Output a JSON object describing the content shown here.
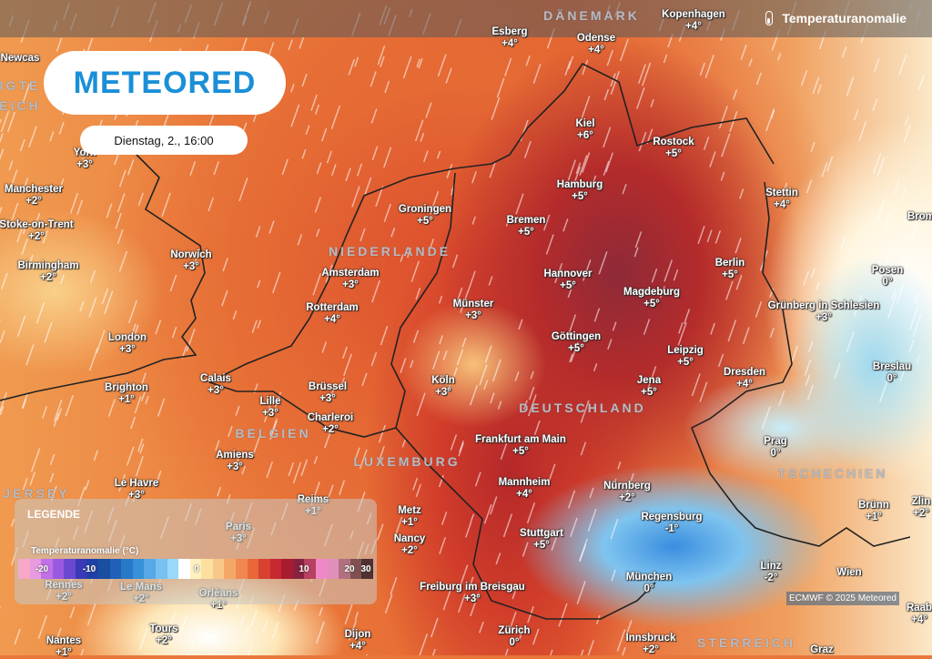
{
  "header": {
    "title": "Temperaturanomalie",
    "icon": "thermometer-icon"
  },
  "logo": {
    "text": "METEORED"
  },
  "timestamp": "Dienstag, 2., 16:00",
  "countries": [
    "DÄNEMARK",
    "NIEDERLANDE",
    "BELGIEN",
    "LUXEMBURG",
    "DEUTSCHLAND",
    "TSCHECHIEN",
    "STERREICH",
    "JERSEY",
    "IGTE",
    "EICH"
  ],
  "cities": [
    {
      "name": "Esberg",
      "value": "+4°"
    },
    {
      "name": "Odense",
      "value": "+4°"
    },
    {
      "name": "Kopenhagen",
      "value": "+4°"
    },
    {
      "name": "Newcas",
      "value": ""
    },
    {
      "name": "York",
      "value": "+3°"
    },
    {
      "name": "Manchester",
      "value": "+2°"
    },
    {
      "name": "Stoke-on-Trent",
      "value": "+2°"
    },
    {
      "name": "Birmingham",
      "value": "+2°"
    },
    {
      "name": "Norwich",
      "value": "+3°"
    },
    {
      "name": "London",
      "value": "+3°"
    },
    {
      "name": "Brighton",
      "value": "+1°"
    },
    {
      "name": "Calais",
      "value": "+3°"
    },
    {
      "name": "Lille",
      "value": "+3°"
    },
    {
      "name": "Brüssel",
      "value": "+3°"
    },
    {
      "name": "Charleroi",
      "value": "+2°"
    },
    {
      "name": "Amiens",
      "value": "+3°"
    },
    {
      "name": "Le Havre",
      "value": "+3°"
    },
    {
      "name": "Reims",
      "value": "+1°"
    },
    {
      "name": "Paris",
      "value": "+3°"
    },
    {
      "name": "Rennes",
      "value": "+2°"
    },
    {
      "name": "Le Mans",
      "value": "+2°"
    },
    {
      "name": "Orléans",
      "value": "+1°"
    },
    {
      "name": "Tours",
      "value": "+2°"
    },
    {
      "name": "Nantes",
      "value": "+1°"
    },
    {
      "name": "Dijon",
      "value": "+4°"
    },
    {
      "name": "Metz",
      "value": "+1°"
    },
    {
      "name": "Nancy",
      "value": "+2°"
    },
    {
      "name": "Kiel",
      "value": "+6°"
    },
    {
      "name": "Rostock",
      "value": "+5°"
    },
    {
      "name": "Hamburg",
      "value": "+5°"
    },
    {
      "name": "Bremen",
      "value": "+5°"
    },
    {
      "name": "Groningen",
      "value": "+5°"
    },
    {
      "name": "Amsterdam",
      "value": "+3°"
    },
    {
      "name": "Rotterdam",
      "value": "+4°"
    },
    {
      "name": "Münster",
      "value": "+3°"
    },
    {
      "name": "Hannover",
      "value": "+5°"
    },
    {
      "name": "Magdeburg",
      "value": "+5°"
    },
    {
      "name": "Berlin",
      "value": "+5°"
    },
    {
      "name": "Stettin",
      "value": "+4°"
    },
    {
      "name": "Posen",
      "value": "0°"
    },
    {
      "name": "Grünberg in Schlesien",
      "value": "+3°"
    },
    {
      "name": "Göttingen",
      "value": "+5°"
    },
    {
      "name": "Leipzig",
      "value": "+5°"
    },
    {
      "name": "Jena",
      "value": "+5°"
    },
    {
      "name": "Dresden",
      "value": "+4°"
    },
    {
      "name": "Breslau",
      "value": "0°"
    },
    {
      "name": "Köln",
      "value": "+3°"
    },
    {
      "name": "Frankfurt am Main",
      "value": "+5°"
    },
    {
      "name": "Mannheim",
      "value": "+4°"
    },
    {
      "name": "Nürnberg",
      "value": "+2°"
    },
    {
      "name": "Stuttgart",
      "value": "+5°"
    },
    {
      "name": "Regensburg",
      "value": "-1°"
    },
    {
      "name": "Freiburg im Breisgau",
      "value": "+3°"
    },
    {
      "name": "München",
      "value": "0°"
    },
    {
      "name": "Linz",
      "value": "-2°"
    },
    {
      "name": "Wien",
      "value": ""
    },
    {
      "name": "Prag",
      "value": "0°"
    },
    {
      "name": "Brünn",
      "value": "+1°"
    },
    {
      "name": "Zlin",
      "value": "+2°"
    },
    {
      "name": "Raab",
      "value": "+4°"
    },
    {
      "name": "Zürich",
      "value": "0°"
    },
    {
      "name": "Innsbruck",
      "value": "+2°"
    },
    {
      "name": "Graz",
      "value": ""
    },
    {
      "name": "Brom",
      "value": ""
    }
  ],
  "legend": {
    "title": "LEGENDE",
    "subtitle": "Temperaturanomalie (°C)",
    "ticks": [
      "-20",
      "-10",
      "0",
      "10",
      "20",
      "30"
    ],
    "colors": [
      "#f7a8c8",
      "#e79ae0",
      "#c070e8",
      "#9a5ae0",
      "#6a48d0",
      "#3a3ab8",
      "#2040a8",
      "#1a4ea0",
      "#2060b8",
      "#2878c8",
      "#3890d8",
      "#58a8e8",
      "#78c0f0",
      "#98d8f8",
      "#ffffff",
      "#fff0c0",
      "#fde0a0",
      "#f8c888",
      "#f4a868",
      "#f08850",
      "#e86838",
      "#d84030",
      "#c82830",
      "#a81c30",
      "#882040",
      "#b84060",
      "#f088c8",
      "#e090b8",
      "#b07080",
      "#805050",
      "#503030"
    ]
  },
  "credit": "ECMWF © 2025 Meteored"
}
